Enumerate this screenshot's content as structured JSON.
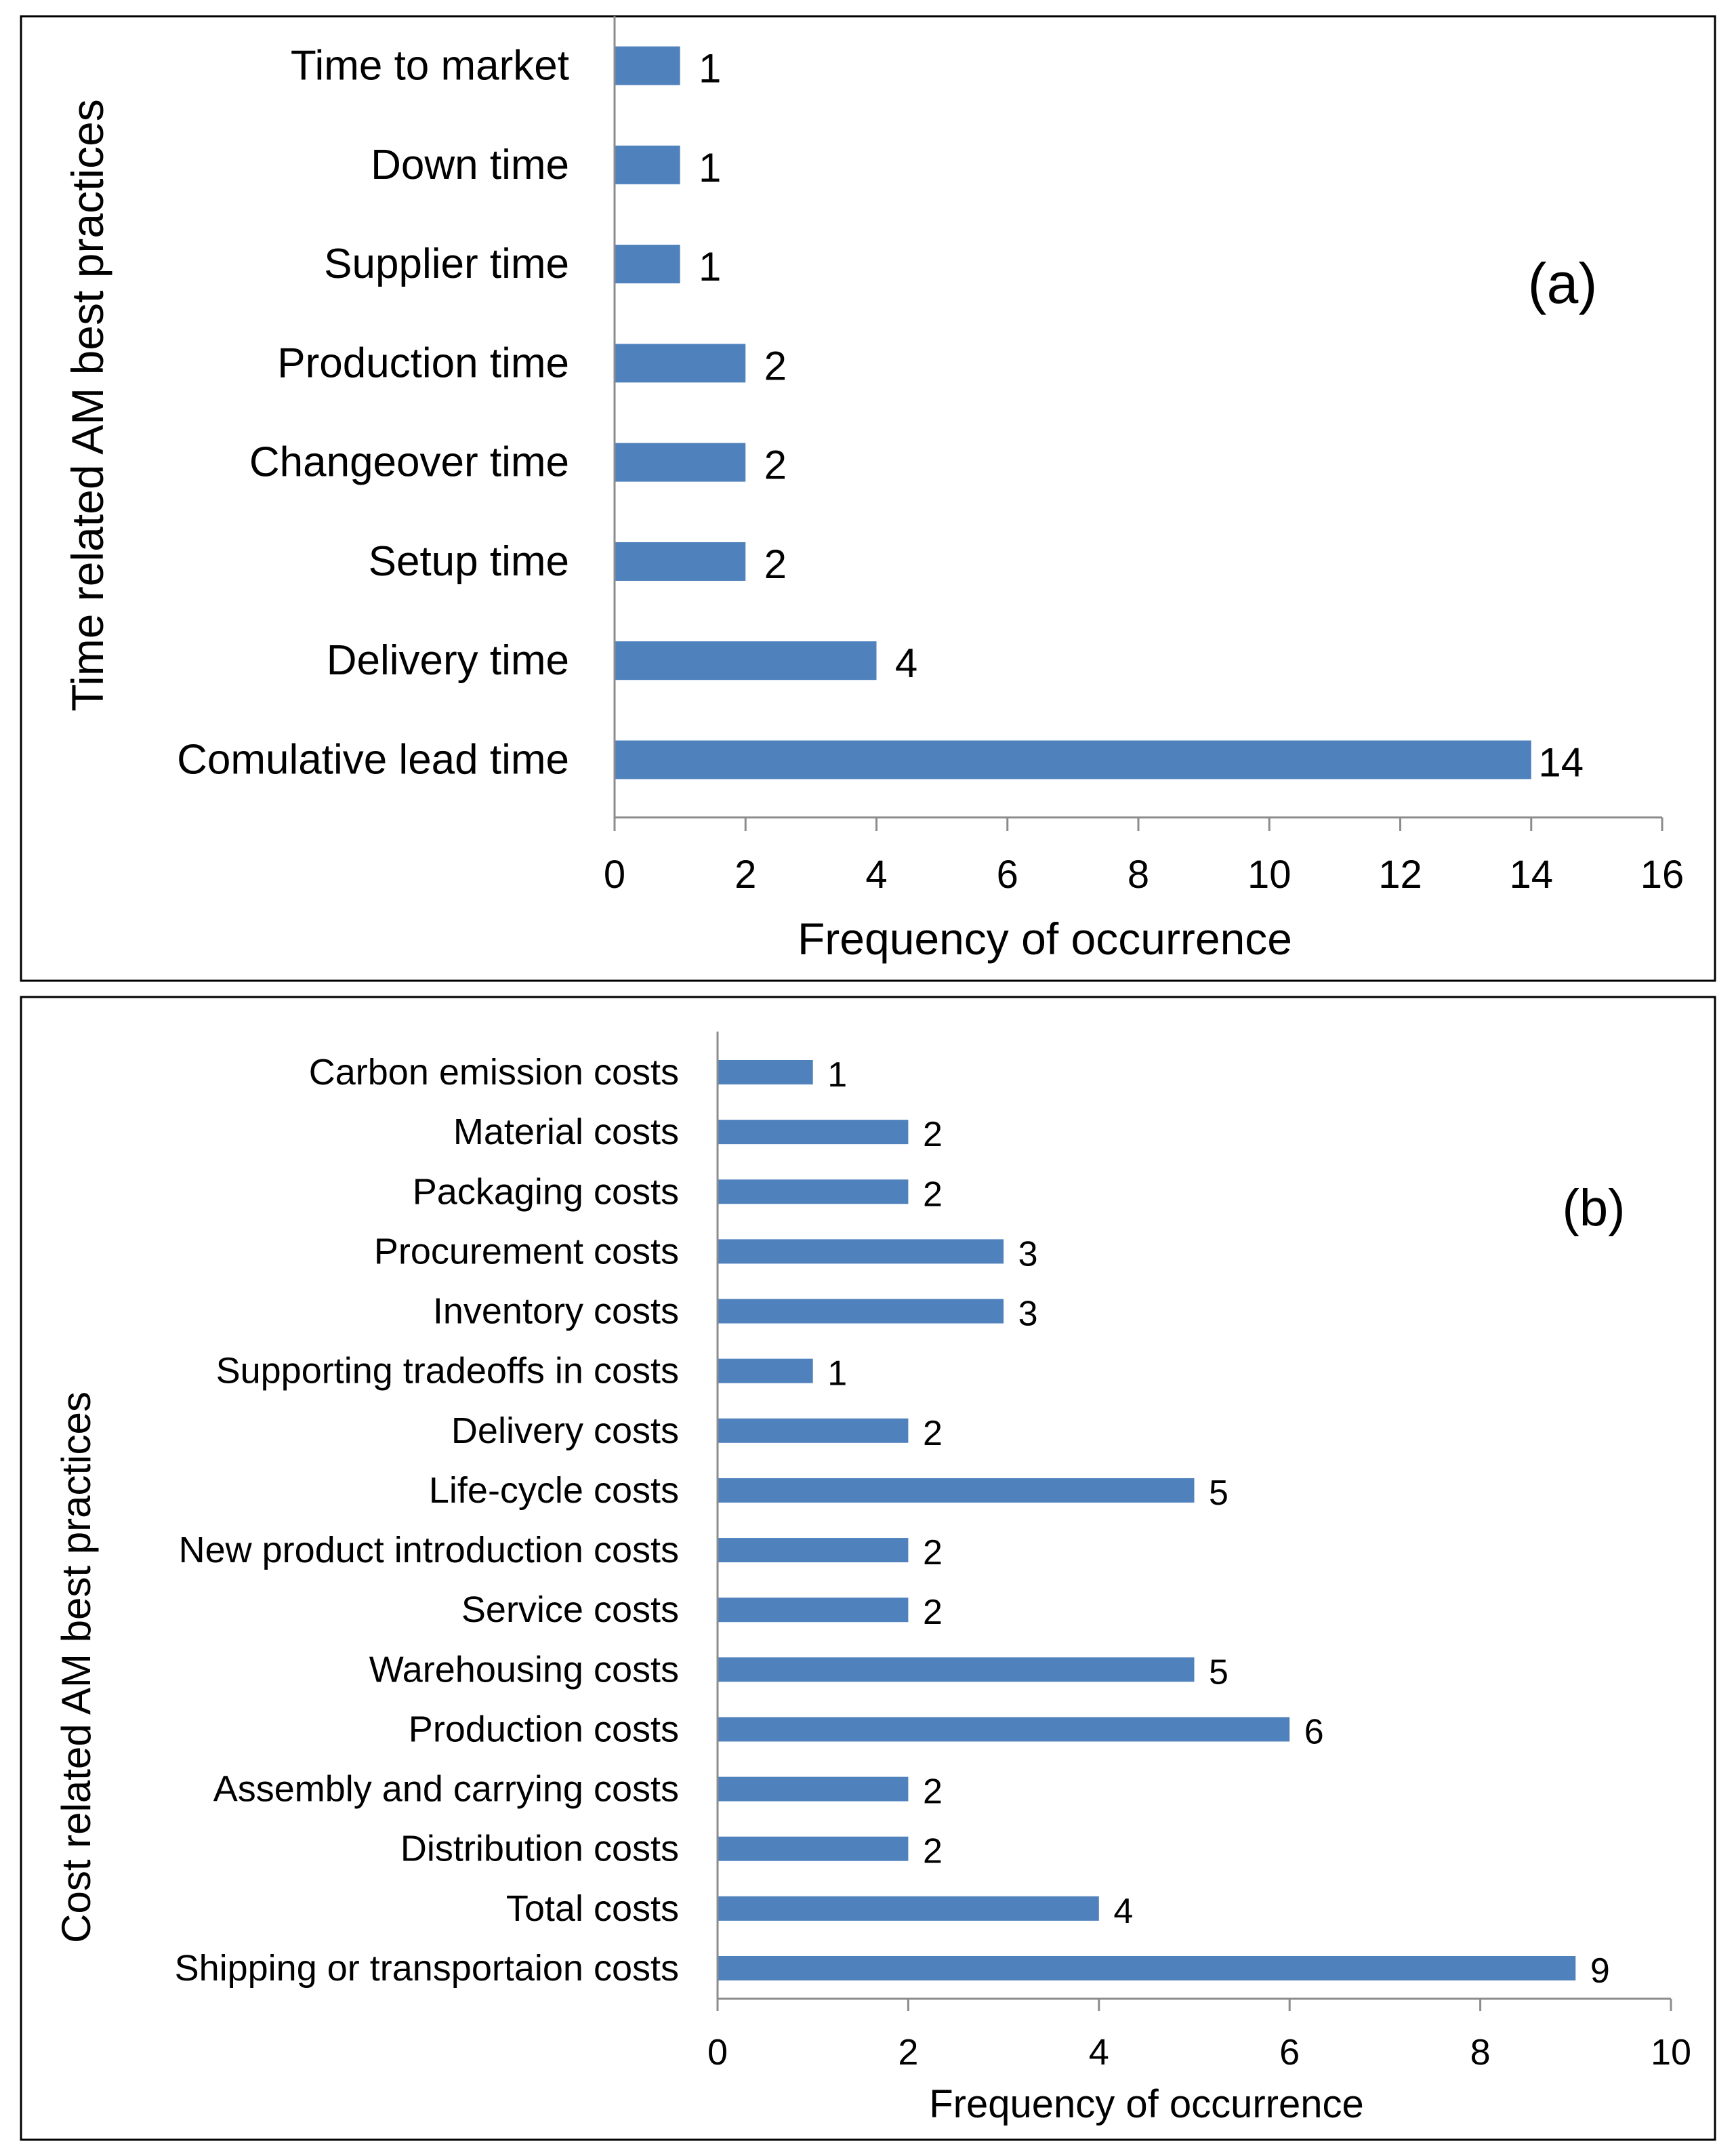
{
  "chart_data": [
    {
      "type": "bar",
      "orientation": "horizontal",
      "panel_tag": "(a)",
      "categories": [
        "Time to market",
        "Down time",
        "Supplier time",
        "Production time",
        "Changeover time",
        "Setup time",
        "Delivery time",
        "Comulative lead time"
      ],
      "values": [
        1,
        1,
        1,
        2,
        2,
        2,
        4,
        14
      ],
      "xlabel": "Frequency of occurrence",
      "ylabel": "Time related AM best practices",
      "xlim": [
        0,
        16
      ],
      "ticks": [
        0,
        2,
        4,
        6,
        8,
        10,
        12,
        14,
        16
      ],
      "bar_color": "#4f81bd",
      "grid": false
    },
    {
      "type": "bar",
      "orientation": "horizontal",
      "panel_tag": "(b)",
      "categories": [
        "Carbon emission costs",
        "Material costs",
        "Packaging costs",
        "Procurement costs",
        "Inventory costs",
        "Supporting tradeoffs in costs",
        "Delivery costs",
        "Life-cycle costs",
        "New product introduction costs",
        "Service costs",
        "Warehousing costs",
        "Production costs",
        "Assembly and carrying costs",
        "Distribution costs",
        "Total costs",
        "Shipping or transportaion costs"
      ],
      "values": [
        1,
        2,
        2,
        3,
        3,
        1,
        2,
        5,
        2,
        2,
        5,
        6,
        2,
        2,
        4,
        9
      ],
      "xlabel": "Frequency of occurrence",
      "ylabel": "Cost related AM best practices",
      "xlim": [
        0,
        10
      ],
      "ticks": [
        0,
        2,
        4,
        6,
        8,
        10
      ],
      "bar_color": "#4f81bd",
      "grid": false
    }
  ]
}
